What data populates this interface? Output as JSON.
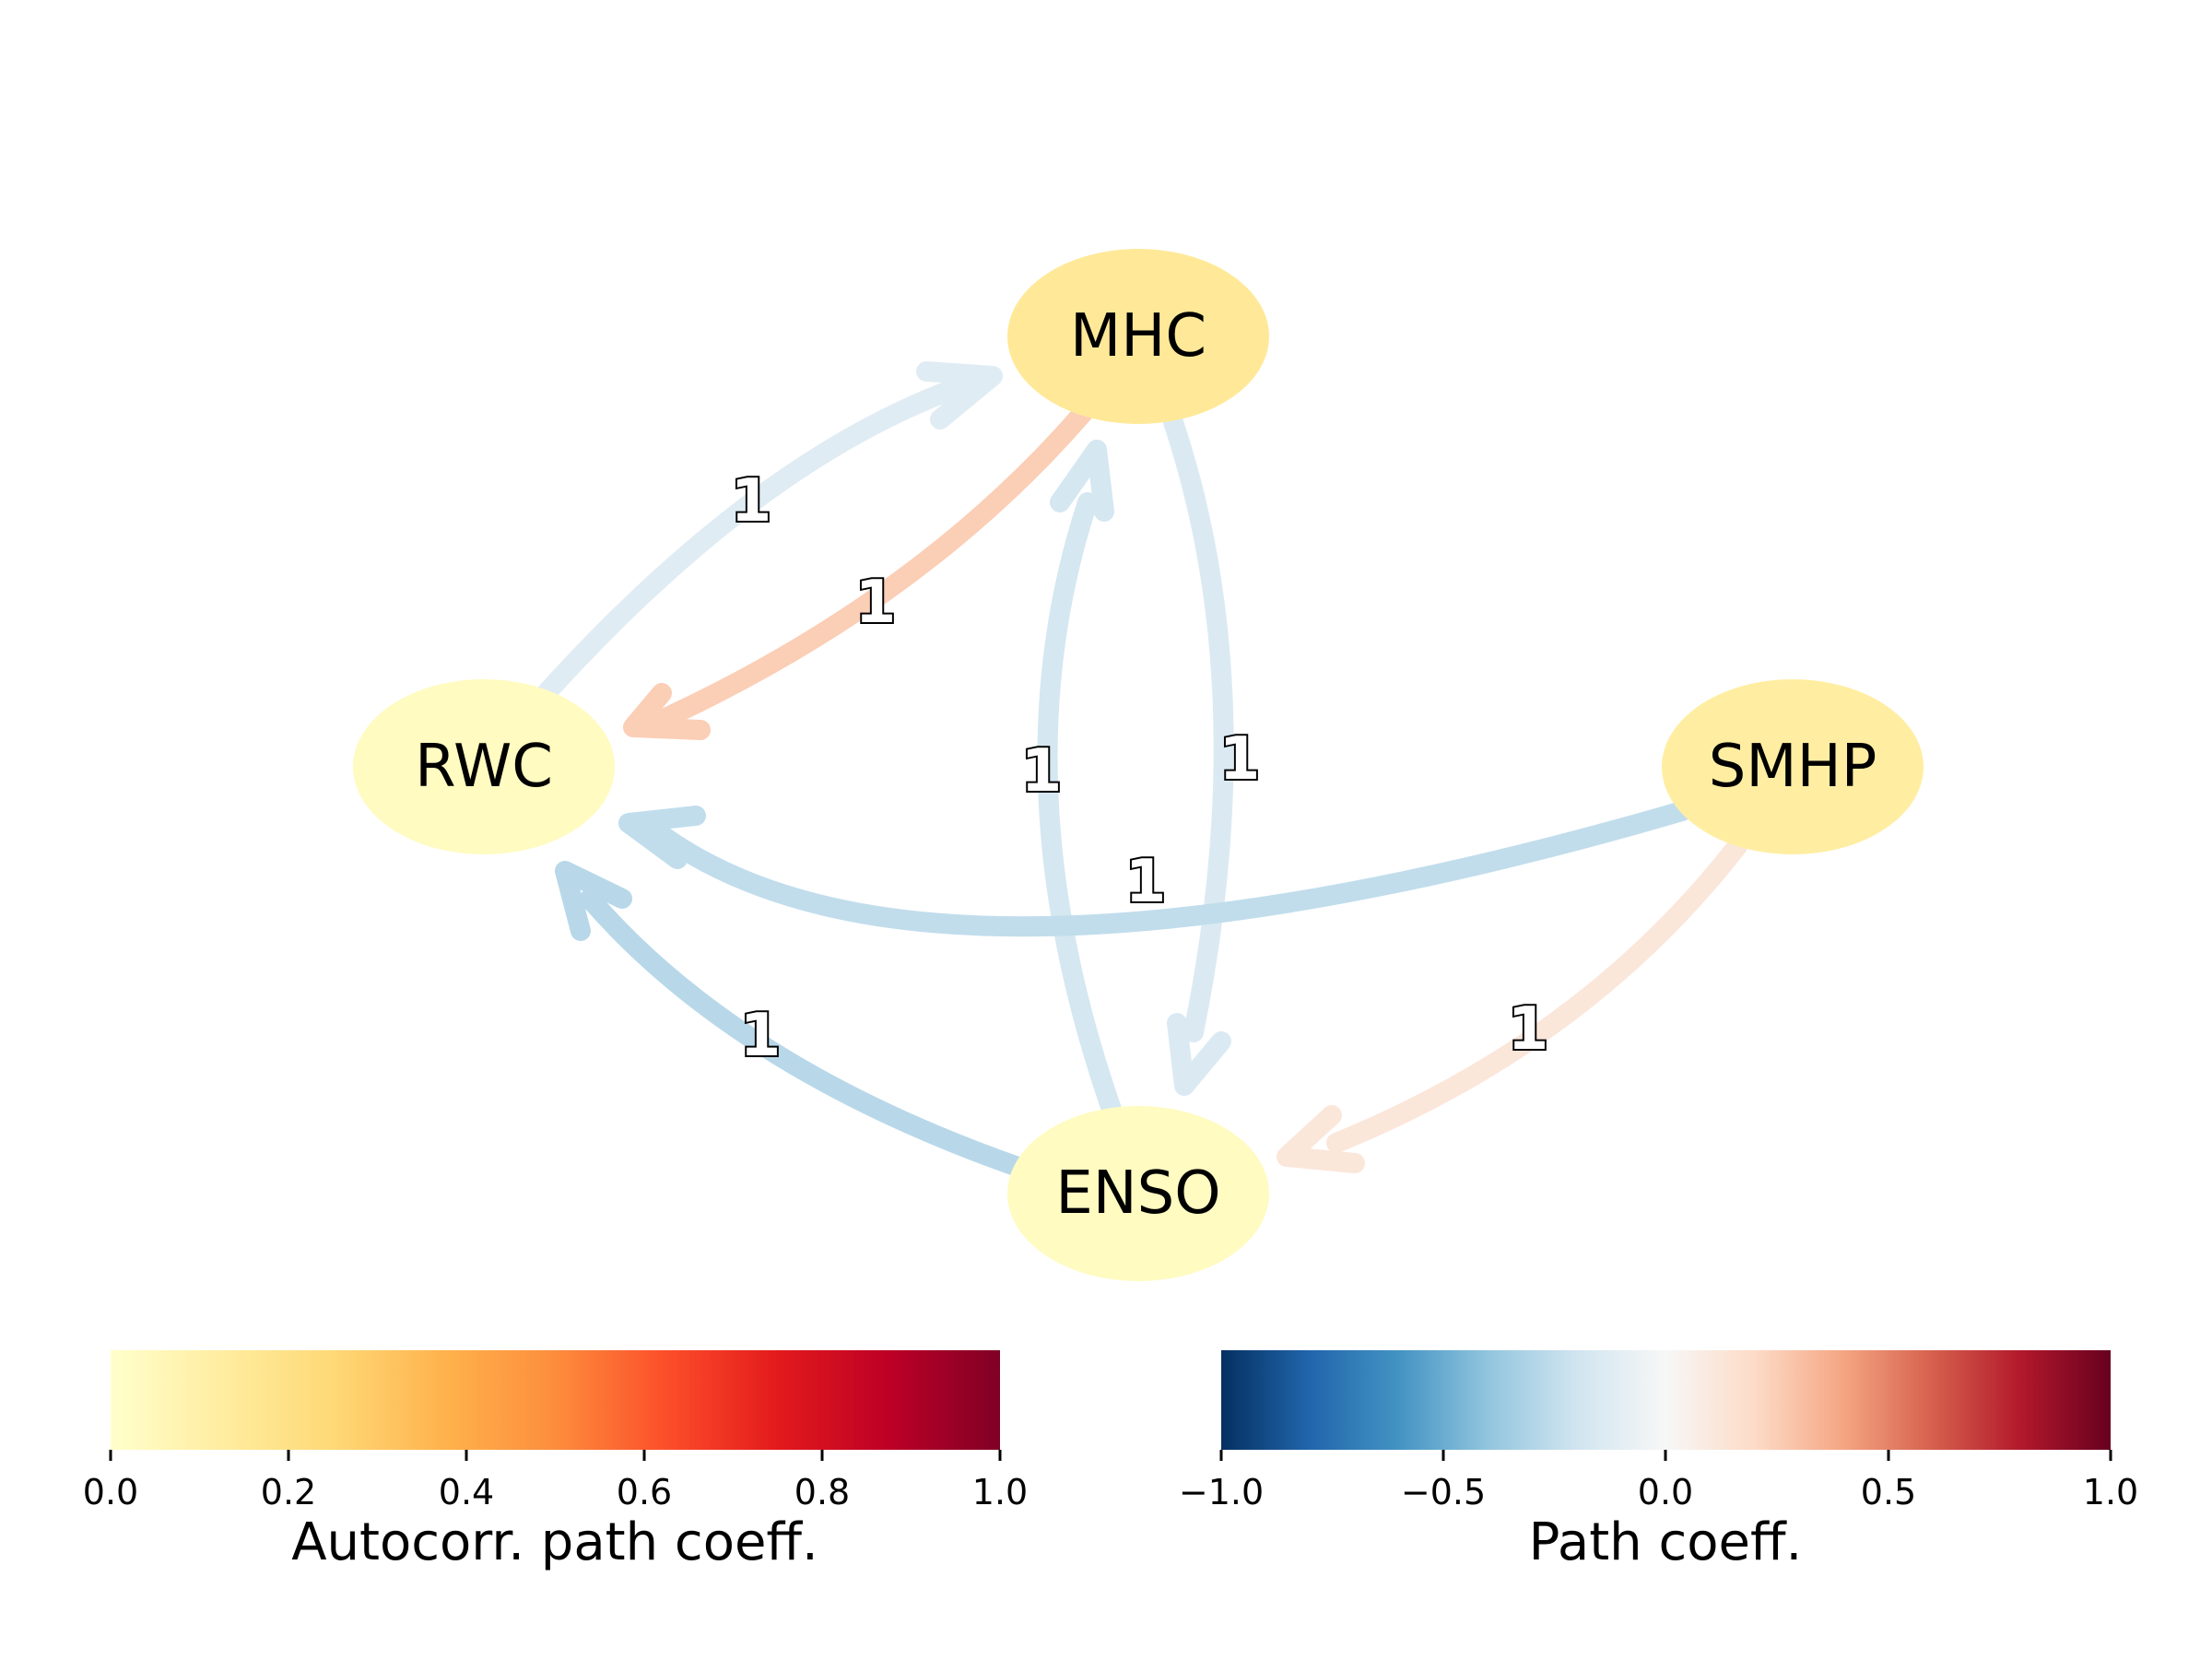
{
  "nodes": [
    {
      "id": "MHC",
      "label": "MHC",
      "autocorr": 0.15
    },
    {
      "id": "RWC",
      "label": "RWC",
      "autocorr": 0.03
    },
    {
      "id": "SMHP",
      "label": "SMHP",
      "autocorr": 0.12
    },
    {
      "id": "ENSO",
      "label": "ENSO",
      "autocorr": 0.03
    }
  ],
  "edges": [
    {
      "from": "RWC",
      "to": "MHC",
      "label": "1",
      "coef": -0.12
    },
    {
      "from": "MHC",
      "to": "RWC",
      "label": "1",
      "coef": 0.25
    },
    {
      "from": "ENSO",
      "to": "MHC",
      "label": "1",
      "coef": -0.18
    },
    {
      "from": "MHC",
      "to": "ENSO",
      "label": "1",
      "coef": -0.15
    },
    {
      "from": "SMHP",
      "to": "RWC",
      "label": "1",
      "coef": -0.25
    },
    {
      "from": "ENSO",
      "to": "RWC",
      "label": "1",
      "coef": -0.28
    },
    {
      "from": "SMHP",
      "to": "ENSO",
      "label": "1",
      "coef": 0.12
    }
  ],
  "colorbars": {
    "autocorr": {
      "label": "Autocorr. path coeff.",
      "ticks": [
        "0.0",
        "0.2",
        "0.4",
        "0.6",
        "0.8",
        "1.0"
      ],
      "colors": [
        "#ffffcc",
        "#ffeda0",
        "#fed976",
        "#feb24c",
        "#fd8d3c",
        "#fc4e2a",
        "#e31a1c",
        "#bd0026",
        "#800026"
      ]
    },
    "path": {
      "label": "Path coeff.",
      "ticks": [
        "−1.0",
        "−0.5",
        "0.0",
        "0.5",
        "1.0"
      ],
      "colors": [
        "#053061",
        "#2166ac",
        "#4393c3",
        "#92c5de",
        "#d1e5f0",
        "#f7f7f7",
        "#fddbc7",
        "#f4a582",
        "#d6604d",
        "#b2182b",
        "#67001f"
      ]
    }
  }
}
